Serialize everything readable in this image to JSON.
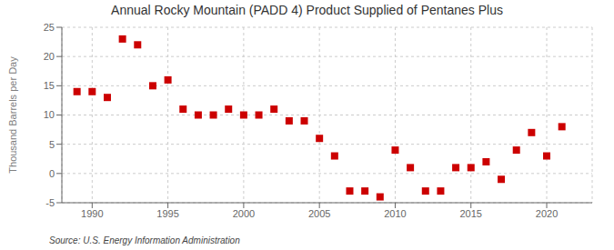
{
  "chart_data": {
    "type": "scatter",
    "title": "Annual Rocky Mountain (PADD 4) Product Supplied of Pentanes Plus",
    "ylabel": "Thousand Barrels per Day",
    "annotation": "Source: U.S. Energy Information Administration",
    "x": [
      1989,
      1990,
      1991,
      1992,
      1993,
      1994,
      1995,
      1996,
      1997,
      1998,
      1999,
      2000,
      2001,
      2002,
      2003,
      2004,
      2005,
      2006,
      2007,
      2008,
      2009,
      2010,
      2011,
      2012,
      2013,
      2014,
      2015,
      2016,
      2017,
      2018,
      2019,
      2020,
      2021
    ],
    "values": [
      14,
      14,
      13,
      23,
      22,
      15,
      16,
      11,
      10,
      10,
      11,
      10,
      10,
      11,
      9,
      9,
      6,
      3,
      -3,
      -3,
      -4,
      4,
      1,
      -3,
      -3,
      1,
      1,
      2,
      -1,
      4,
      7,
      3,
      8
    ],
    "color": "#cc0000",
    "marker": "square",
    "xlim": [
      1988,
      2023
    ],
    "ylim": [
      -5,
      25
    ],
    "xticks": [
      1990,
      1995,
      2000,
      2005,
      2010,
      2015,
      2020
    ],
    "yticks": [
      -5,
      0,
      5,
      10,
      15,
      20,
      25
    ],
    "grid": true
  }
}
